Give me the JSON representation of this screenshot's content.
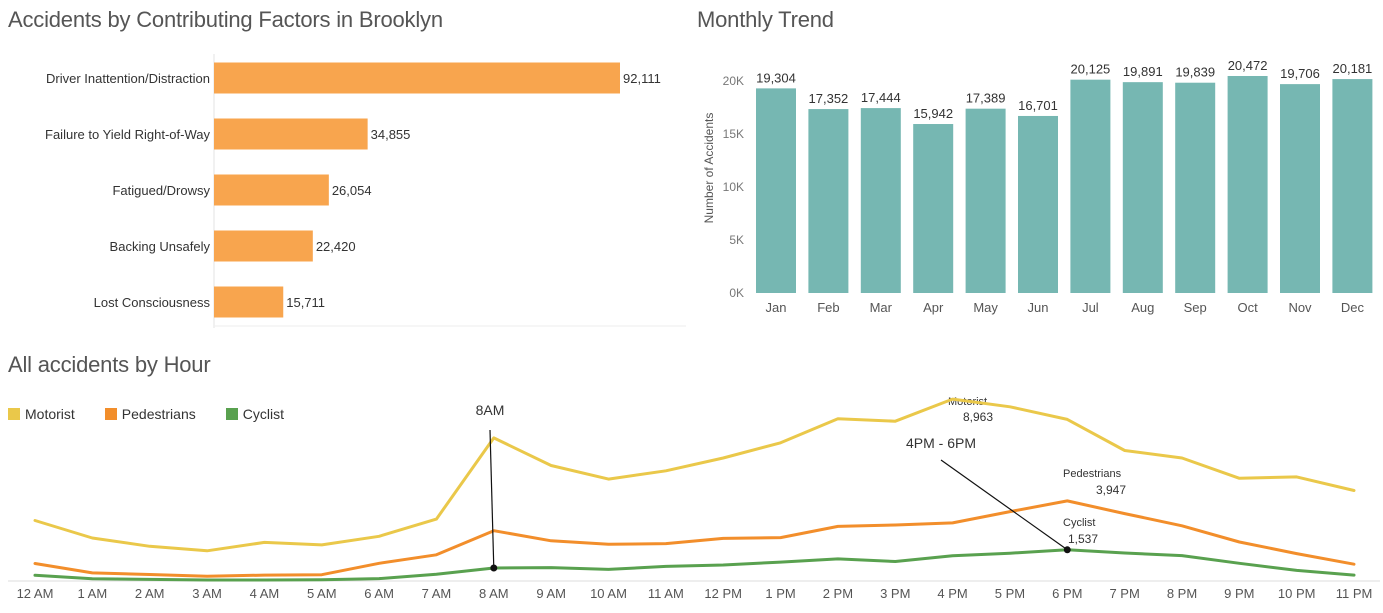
{
  "titles": {
    "factors": "Accidents by Contributing Factors in Brooklyn",
    "monthly": "Monthly Trend",
    "hourly": "All accidents by Hour"
  },
  "colors": {
    "bar_orange": "#F8A54E",
    "bar_teal": "#76B7B2",
    "motorist": "#EAC84A",
    "pedestrians": "#F28E2B",
    "cyclist": "#59A14F"
  },
  "legend": [
    {
      "label": "Motorist",
      "color": "#EAC84A"
    },
    {
      "label": "Pedestrians",
      "color": "#F28E2B"
    },
    {
      "label": "Cyclist",
      "color": "#59A14F"
    }
  ],
  "annotations": {
    "eight_am": "8AM",
    "evening": "4PM - 6PM",
    "motorist_name": "Motorist",
    "motorist_value": "8,963",
    "pedestrians_name": "Pedestrians",
    "pedestrians_value": "3,947",
    "cyclist_name": "Cyclist",
    "cyclist_value": "1,537"
  },
  "chart_data": [
    {
      "type": "bar",
      "orientation": "horizontal",
      "title": "Accidents by Contributing Factors in Brooklyn",
      "categories": [
        "Driver Inattention/Distraction",
        "Failure to Yield Right-of-Way",
        "Fatigued/Drowsy",
        "Backing Unsafely",
        "Lost Consciousness"
      ],
      "values": [
        92111,
        34855,
        26054,
        22420,
        15711
      ],
      "value_labels": [
        "92,111",
        "34,855",
        "26,054",
        "22,420",
        "15,711"
      ],
      "color": "#F8A54E"
    },
    {
      "type": "bar",
      "title": "Monthly Trend",
      "categories": [
        "Jan",
        "Feb",
        "Mar",
        "Apr",
        "May",
        "Jun",
        "Jul",
        "Aug",
        "Sep",
        "Oct",
        "Nov",
        "Dec"
      ],
      "values": [
        19304,
        17352,
        17444,
        15942,
        17389,
        16701,
        20125,
        19891,
        19839,
        20472,
        19706,
        20181
      ],
      "value_labels": [
        "19,304",
        "17,352",
        "17,444",
        "15,942",
        "17,389",
        "16,701",
        "20,125",
        "19,891",
        "19,839",
        "20,472",
        "19,706",
        "20,181"
      ],
      "ylabel": "Number of Accidents",
      "yticks": [
        "0K",
        "5K",
        "10K",
        "15K",
        "20K"
      ],
      "ylim": [
        0,
        23000
      ],
      "color": "#76B7B2"
    },
    {
      "type": "line",
      "title": "All accidents by Hour",
      "categories": [
        "12 AM",
        "1 AM",
        "2 AM",
        "3 AM",
        "4 AM",
        "5 AM",
        "6 AM",
        "7 AM",
        "8 AM",
        "9 AM",
        "10 AM",
        "11 AM",
        "12 PM",
        "1 PM",
        "2 PM",
        "3 PM",
        "4 PM",
        "5 PM",
        "6 PM",
        "7 PM",
        "8 PM",
        "9 PM",
        "10 PM",
        "11 PM"
      ],
      "series": [
        {
          "name": "Motorist",
          "color": "#EAC84A",
          "values": [
            2980,
            2120,
            1710,
            1490,
            1900,
            1780,
            2200,
            3050,
            7050,
            5690,
            5020,
            5430,
            6060,
            6810,
            7990,
            7870,
            8963,
            8580,
            7960,
            6430,
            6060,
            5060,
            5130,
            4460
          ]
        },
        {
          "name": "Pedestrians",
          "color": "#F28E2B",
          "values": [
            860,
            400,
            320,
            230,
            290,
            310,
            870,
            1290,
            2480,
            1980,
            1810,
            1840,
            2100,
            2140,
            2690,
            2760,
            2860,
            3420,
            3947,
            3320,
            2720,
            1920,
            1350,
            830
          ]
        },
        {
          "name": "Cyclist",
          "color": "#59A14F",
          "values": [
            280,
            110,
            80,
            50,
            50,
            60,
            120,
            330,
            640,
            660,
            570,
            720,
            790,
            930,
            1090,
            960,
            1240,
            1370,
            1537,
            1380,
            1250,
            870,
            520,
            290
          ]
        }
      ],
      "ylim": [
        0,
        9300
      ]
    }
  ]
}
